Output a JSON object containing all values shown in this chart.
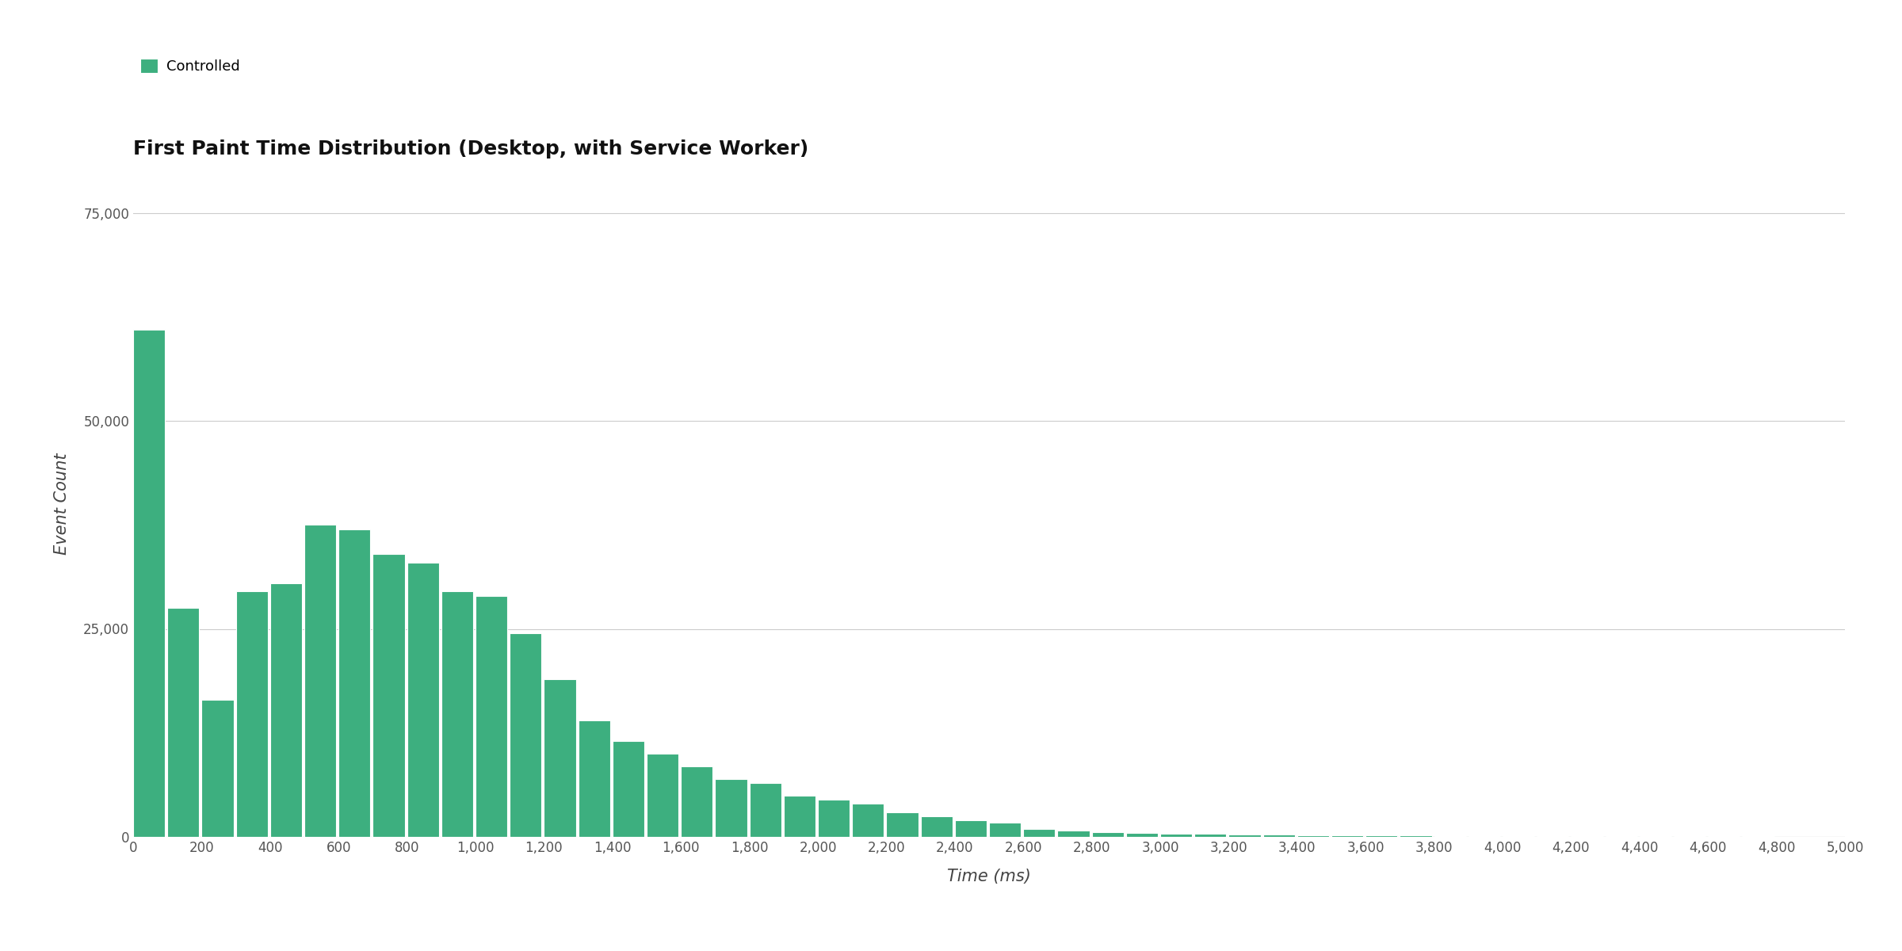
{
  "title": "First Paint Time Distribution (Desktop, with Service Worker)",
  "xlabel": "Time (ms)",
  "ylabel": "Event Count",
  "legend_label": "Controlled",
  "bar_color": "#3daf7f",
  "background_color": "#ffffff",
  "grid_color": "#cccccc",
  "bar_values": [
    61000,
    27500,
    16500,
    29500,
    30500,
    37500,
    37000,
    34000,
    33000,
    29500,
    29000,
    24500,
    19000,
    14000,
    11500,
    10000,
    8500,
    7000,
    6500,
    5000,
    4500,
    4000,
    3000,
    2500,
    2000,
    1700,
    1000,
    800,
    600,
    500,
    400,
    350,
    300,
    250,
    200,
    180,
    160,
    150,
    140,
    130,
    120,
    110,
    100,
    90,
    80,
    70,
    60,
    50,
    40,
    30
  ],
  "x_step": 100,
  "ylim": [
    0,
    80000
  ],
  "yticks": [
    0,
    25000,
    50000,
    75000
  ],
  "title_fontsize": 18,
  "axis_label_fontsize": 15,
  "tick_fontsize": 12,
  "legend_fontsize": 13
}
